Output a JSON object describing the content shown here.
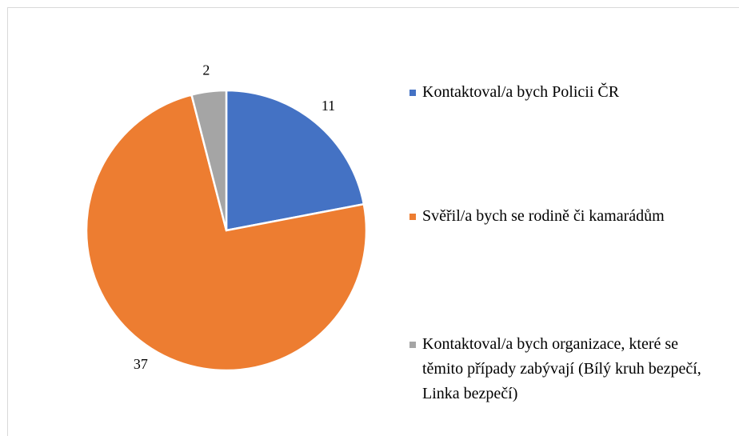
{
  "chart_data": {
    "type": "pie",
    "categories": [
      "Kontaktoval/a bych Policii ČR",
      "Svěřil/a bych se rodině či kamarádům",
      "Kontaktoval/a bych organizace, které se těmito případy zabývají (Bílý kruh bezpečí, Linka bezpečí)"
    ],
    "values": [
      11,
      37,
      2
    ],
    "colors": [
      "#4472c4",
      "#ed7d31",
      "#a5a5a5"
    ],
    "legend": "right"
  }
}
